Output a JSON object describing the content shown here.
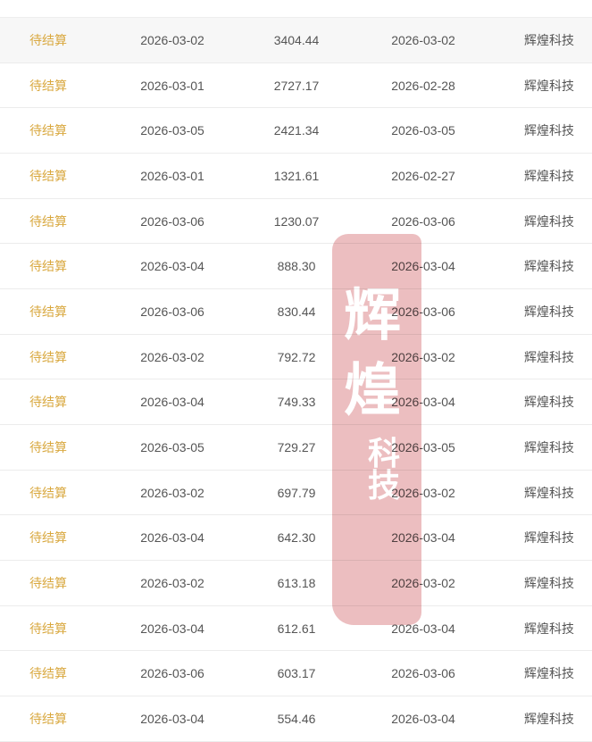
{
  "table": {
    "rows": [
      {
        "status": "待结算",
        "date": "2026-03-02",
        "amount": "3404.44",
        "settle_date": "2026-03-02",
        "company": "辉煌科技"
      },
      {
        "status": "待结算",
        "date": "2026-03-01",
        "amount": "2727.17",
        "settle_date": "2026-02-28",
        "company": "辉煌科技"
      },
      {
        "status": "待结算",
        "date": "2026-03-05",
        "amount": "2421.34",
        "settle_date": "2026-03-05",
        "company": "辉煌科技"
      },
      {
        "status": "待结算",
        "date": "2026-03-01",
        "amount": "1321.61",
        "settle_date": "2026-02-27",
        "company": "辉煌科技"
      },
      {
        "status": "待结算",
        "date": "2026-03-06",
        "amount": "1230.07",
        "settle_date": "2026-03-06",
        "company": "辉煌科技"
      },
      {
        "status": "待结算",
        "date": "2026-03-04",
        "amount": "888.30",
        "settle_date": "2026-03-04",
        "company": "辉煌科技"
      },
      {
        "status": "待结算",
        "date": "2026-03-06",
        "amount": "830.44",
        "settle_date": "2026-03-06",
        "company": "辉煌科技"
      },
      {
        "status": "待结算",
        "date": "2026-03-02",
        "amount": "792.72",
        "settle_date": "2026-03-02",
        "company": "辉煌科技"
      },
      {
        "status": "待结算",
        "date": "2026-03-04",
        "amount": "749.33",
        "settle_date": "2026-03-04",
        "company": "辉煌科技"
      },
      {
        "status": "待结算",
        "date": "2026-03-05",
        "amount": "729.27",
        "settle_date": "2026-03-05",
        "company": "辉煌科技"
      },
      {
        "status": "待结算",
        "date": "2026-03-02",
        "amount": "697.79",
        "settle_date": "2026-03-02",
        "company": "辉煌科技"
      },
      {
        "status": "待结算",
        "date": "2026-03-04",
        "amount": "642.30",
        "settle_date": "2026-03-04",
        "company": "辉煌科技"
      },
      {
        "status": "待结算",
        "date": "2026-03-02",
        "amount": "613.18",
        "settle_date": "2026-03-02",
        "company": "辉煌科技"
      },
      {
        "status": "待结算",
        "date": "2026-03-04",
        "amount": "612.61",
        "settle_date": "2026-03-04",
        "company": "辉煌科技"
      },
      {
        "status": "待结算",
        "date": "2026-03-06",
        "amount": "603.17",
        "settle_date": "2026-03-06",
        "company": "辉煌科技"
      },
      {
        "status": "待结算",
        "date": "2026-03-04",
        "amount": "554.46",
        "settle_date": "2026-03-04",
        "company": "辉煌科技"
      }
    ]
  },
  "stamp": {
    "text": "辉煌科技",
    "chars": [
      "辉",
      "煌",
      "科技"
    ],
    "color": "#d26469"
  },
  "colors": {
    "status_pending": "#d9a83f",
    "text": "#555555"
  }
}
